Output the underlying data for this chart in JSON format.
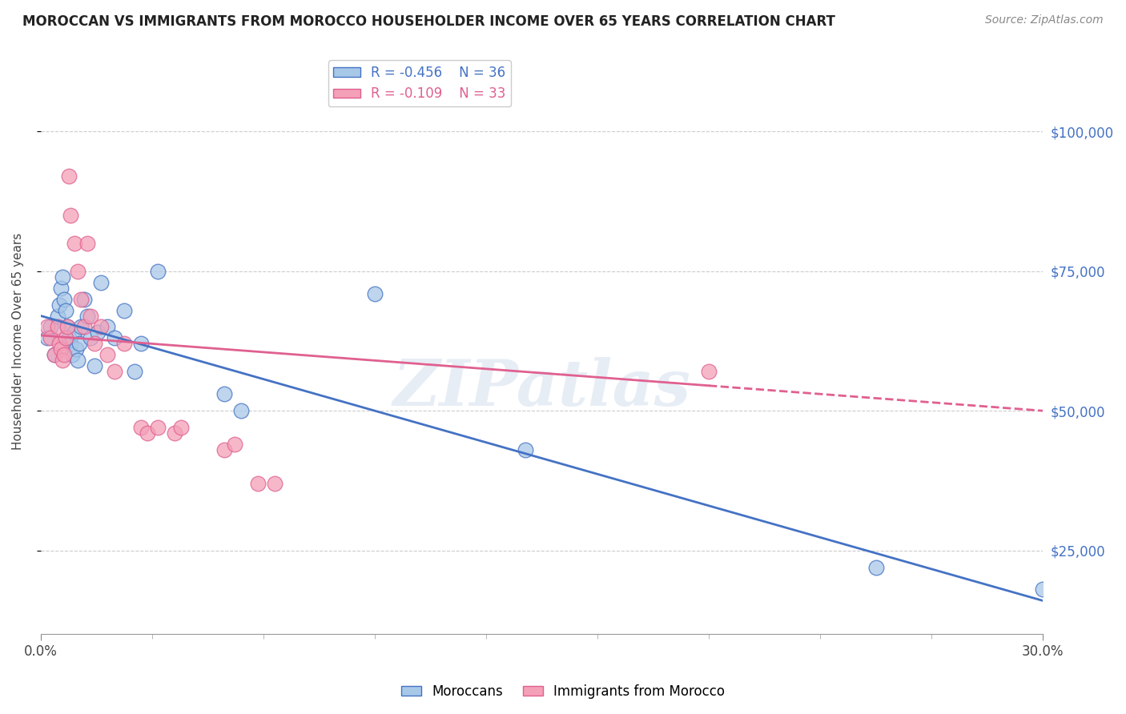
{
  "title": "MOROCCAN VS IMMIGRANTS FROM MOROCCO HOUSEHOLDER INCOME OVER 65 YEARS CORRELATION CHART",
  "source": "Source: ZipAtlas.com",
  "ylabel": "Householder Income Over 65 years",
  "xlabel_ticks": [
    "0.0%",
    "",
    "",
    "",
    "",
    "",
    "",
    "",
    "",
    "30.0%"
  ],
  "xlabel_vals": [
    0.0,
    3.333,
    6.667,
    10.0,
    13.333,
    16.667,
    20.0,
    23.333,
    26.667,
    30.0
  ],
  "ylabel_ticks": [
    "$25,000",
    "$50,000",
    "$75,000",
    "$100,000"
  ],
  "ylabel_vals": [
    25000,
    50000,
    75000,
    100000
  ],
  "xlim": [
    0,
    30
  ],
  "ylim": [
    10000,
    115000
  ],
  "blue_R": -0.456,
  "blue_N": 36,
  "pink_R": -0.109,
  "pink_N": 33,
  "blue_color": "#a8c8e8",
  "pink_color": "#f4a0b8",
  "blue_line_color": "#4472c4",
  "pink_line_color": "#e06090",
  "moroccans_label": "Moroccans",
  "immigrants_label": "Immigrants from Morocco",
  "blue_x": [
    0.2,
    0.3,
    0.4,
    0.5,
    0.55,
    0.6,
    0.65,
    0.7,
    0.75,
    0.8,
    0.85,
    0.9,
    0.95,
    1.0,
    1.05,
    1.1,
    1.15,
    1.2,
    1.3,
    1.4,
    1.5,
    1.6,
    1.7,
    1.8,
    2.0,
    2.2,
    2.5,
    2.8,
    3.0,
    3.5,
    5.5,
    6.0,
    10.0,
    14.5,
    25.0,
    30.0
  ],
  "blue_y": [
    63000,
    65000,
    60000,
    67000,
    69000,
    72000,
    74000,
    70000,
    68000,
    65000,
    63000,
    62000,
    60000,
    64000,
    61000,
    59000,
    62000,
    65000,
    70000,
    67000,
    63000,
    58000,
    64000,
    73000,
    65000,
    63000,
    68000,
    57000,
    62000,
    75000,
    53000,
    50000,
    71000,
    43000,
    22000,
    18000
  ],
  "pink_x": [
    0.2,
    0.3,
    0.4,
    0.5,
    0.55,
    0.6,
    0.65,
    0.7,
    0.75,
    0.8,
    0.85,
    0.9,
    1.0,
    1.1,
    1.2,
    1.3,
    1.4,
    1.5,
    1.6,
    1.8,
    2.0,
    2.2,
    2.5,
    3.0,
    3.2,
    3.5,
    4.0,
    4.2,
    5.5,
    5.8,
    6.5,
    7.0,
    20.0
  ],
  "pink_y": [
    65000,
    63000,
    60000,
    65000,
    62000,
    61000,
    59000,
    60000,
    63000,
    65000,
    92000,
    85000,
    80000,
    75000,
    70000,
    65000,
    80000,
    67000,
    62000,
    65000,
    60000,
    57000,
    62000,
    47000,
    46000,
    47000,
    46000,
    47000,
    43000,
    44000,
    37000,
    37000,
    57000
  ],
  "watermark": "ZIPatlas",
  "background_color": "#ffffff",
  "grid_color": "#cccccc"
}
